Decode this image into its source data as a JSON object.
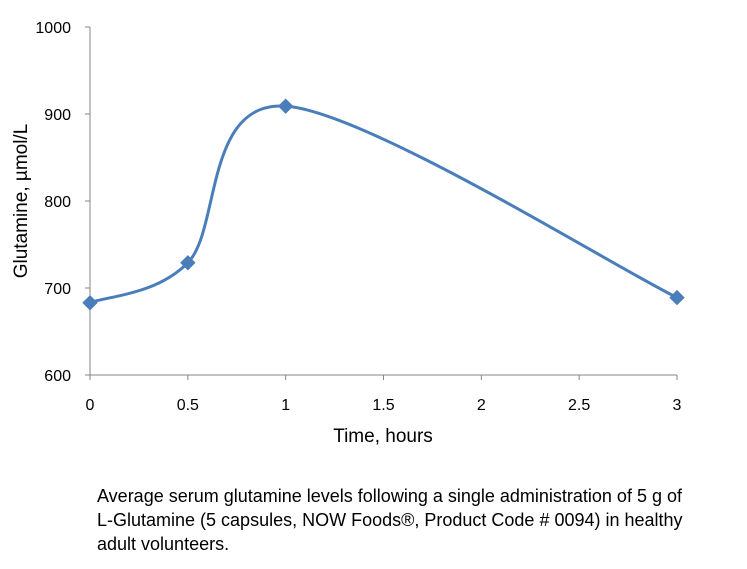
{
  "chart_data": {
    "type": "line",
    "title": "",
    "xlabel": "Time, hours",
    "ylabel": "Glutamine, µmol/L",
    "xlim": [
      0,
      3
    ],
    "ylim": [
      600,
      1000
    ],
    "xticks": [
      "0",
      "0.5",
      "1",
      "1.5",
      "2",
      "2.5",
      "3"
    ],
    "yticks": [
      "600",
      "700",
      "800",
      "900",
      "1000"
    ],
    "smoothed": true,
    "marker": "diamond",
    "grid": false,
    "series": [
      {
        "name": "Glutamine",
        "color": "#4a7ebb",
        "x": [
          0,
          0.5,
          1,
          3
        ],
        "y": [
          683,
          729,
          909,
          689
        ]
      }
    ]
  },
  "caption": "Average serum glutamine levels following a single administration of 5 g of L-Glutamine (5 capsules, NOW Foods®, Product Code # 0094) in healthy adult volunteers."
}
